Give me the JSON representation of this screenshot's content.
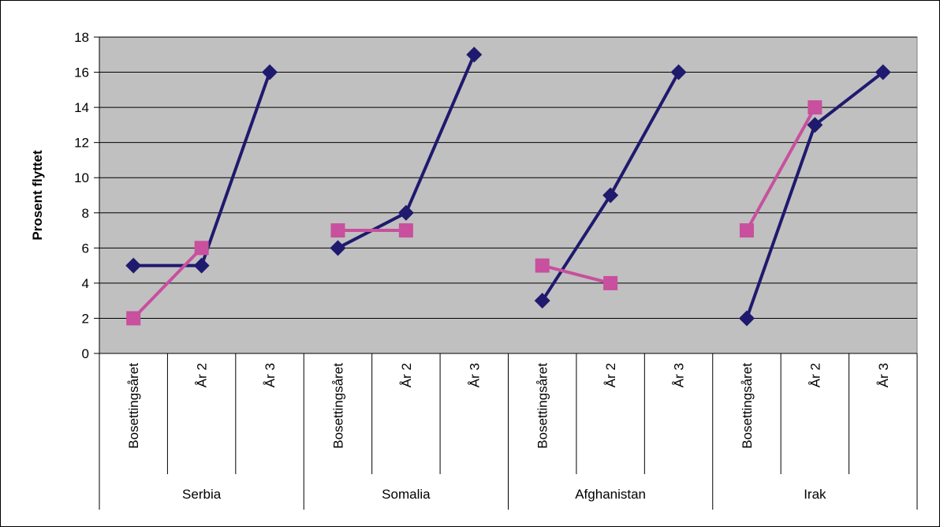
{
  "chart_data": {
    "type": "line",
    "title": "",
    "xlabel": "",
    "ylabel": "Prosent flyttet",
    "ylim": [
      0,
      18
    ],
    "y_ticks": [
      0,
      2,
      4,
      6,
      8,
      10,
      12,
      14,
      16,
      18
    ],
    "grid": true,
    "legend": "none",
    "plot_background": "#c0c0c0",
    "groups": [
      {
        "name": "Serbia",
        "categories": [
          "Bosettingsåret",
          "År 2",
          "År 3"
        ]
      },
      {
        "name": "Somalia",
        "categories": [
          "Bosettingsåret",
          "År 2",
          "År 3"
        ]
      },
      {
        "name": "Afghanistan",
        "categories": [
          "Bosettingsåret",
          "År 2",
          "År 3"
        ]
      },
      {
        "name": "Irak",
        "categories": [
          "Bosettingsåret",
          "År 2",
          "År 3"
        ]
      }
    ],
    "series": [
      {
        "color": "#1f1a6e",
        "marker": "diamond",
        "values": [
          [
            5,
            5,
            16
          ],
          [
            6,
            8,
            17
          ],
          [
            3,
            9,
            16
          ],
          [
            2,
            13,
            16
          ]
        ]
      },
      {
        "color": "#c8509e",
        "marker": "square",
        "values": [
          [
            2,
            6,
            null
          ],
          [
            7,
            7,
            null
          ],
          [
            5,
            4,
            null
          ],
          [
            7,
            14,
            null
          ]
        ]
      }
    ]
  }
}
